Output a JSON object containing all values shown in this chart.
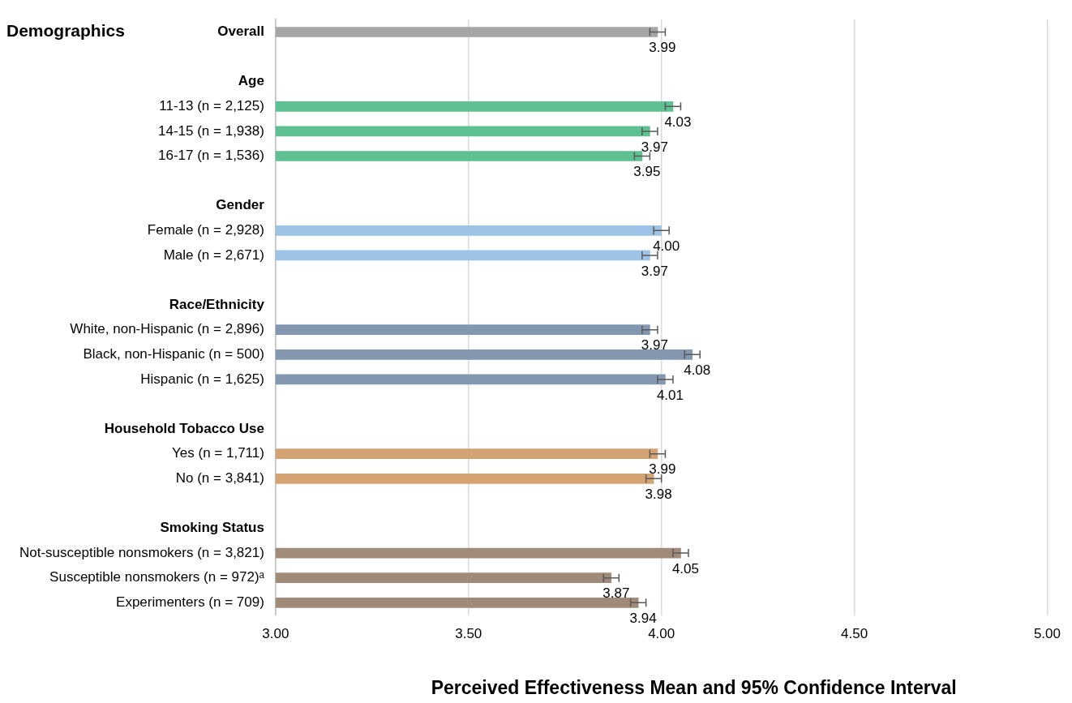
{
  "chart_data": {
    "type": "bar",
    "orientation": "horizontal",
    "ylabel": "Demographics",
    "xlabel": "Perceived Effectiveness Mean and 95% Confidence Interval",
    "categories": [
      "Overall",
      null,
      "Age",
      "11-13 (n = 2,125)",
      "14-15 (n = 1,938)",
      "16-17 (n = 1,536)",
      null,
      "Gender",
      "Female (n = 2,928)",
      "Male (n = 2,671)",
      null,
      "Race/Ethnicity",
      "White, non-Hispanic (n = 2,896)",
      "Black, non-Hispanic (n = 500)",
      "Hispanic (n = 1,625)",
      null,
      "Household Tobacco Use",
      "Yes (n = 1,711)",
      "No (n = 3,841)",
      null,
      "Smoking Status",
      "Not-susceptible nonsmokers (n = 3,821)",
      "Susceptible nonsmokers (n = 972)ᵃ",
      "Experimenters (n = 709)"
    ],
    "values": [
      3.99,
      null,
      null,
      4.03,
      3.97,
      3.95,
      null,
      null,
      4.0,
      3.97,
      null,
      null,
      3.97,
      4.08,
      4.01,
      null,
      null,
      3.99,
      3.98,
      null,
      null,
      4.05,
      3.87,
      3.94
    ],
    "value_labels": [
      "3.99",
      null,
      null,
      "4.03",
      "3.97",
      "3.95",
      null,
      null,
      "4.00",
      "3.97",
      null,
      null,
      "3.97",
      "4.08",
      "4.01",
      null,
      null,
      "3.99",
      "3.98",
      null,
      null,
      "4.05",
      "3.87",
      "3.94"
    ],
    "errors": [
      0.02,
      null,
      null,
      0.02,
      0.02,
      0.02,
      null,
      null,
      0.02,
      0.02,
      null,
      null,
      0.02,
      0.02,
      0.02,
      null,
      null,
      0.02,
      0.02,
      null,
      null,
      0.02,
      0.02,
      0.02
    ],
    "colors": [
      "#a6a6a6",
      null,
      null,
      "#5fc192",
      "#5fc192",
      "#5fc192",
      null,
      null,
      "#9dc3e6",
      "#9dc3e6",
      null,
      null,
      "#8497b0",
      "#8497b0",
      "#8497b0",
      null,
      null,
      "#d4a373",
      "#d4a373",
      null,
      null,
      "#a08a78",
      "#a08a78",
      "#a08a78"
    ],
    "xlim": [
      3,
      5
    ],
    "xticks": [
      {
        "value": 3,
        "label": "3.00"
      },
      {
        "value": 3.5,
        "label": "3.50"
      },
      {
        "value": 4,
        "label": "4.00"
      },
      {
        "value": 4.5,
        "label": "4.50"
      },
      {
        "value": 5,
        "label": "5.00"
      }
    ],
    "grid": "x",
    "legend": false
  }
}
